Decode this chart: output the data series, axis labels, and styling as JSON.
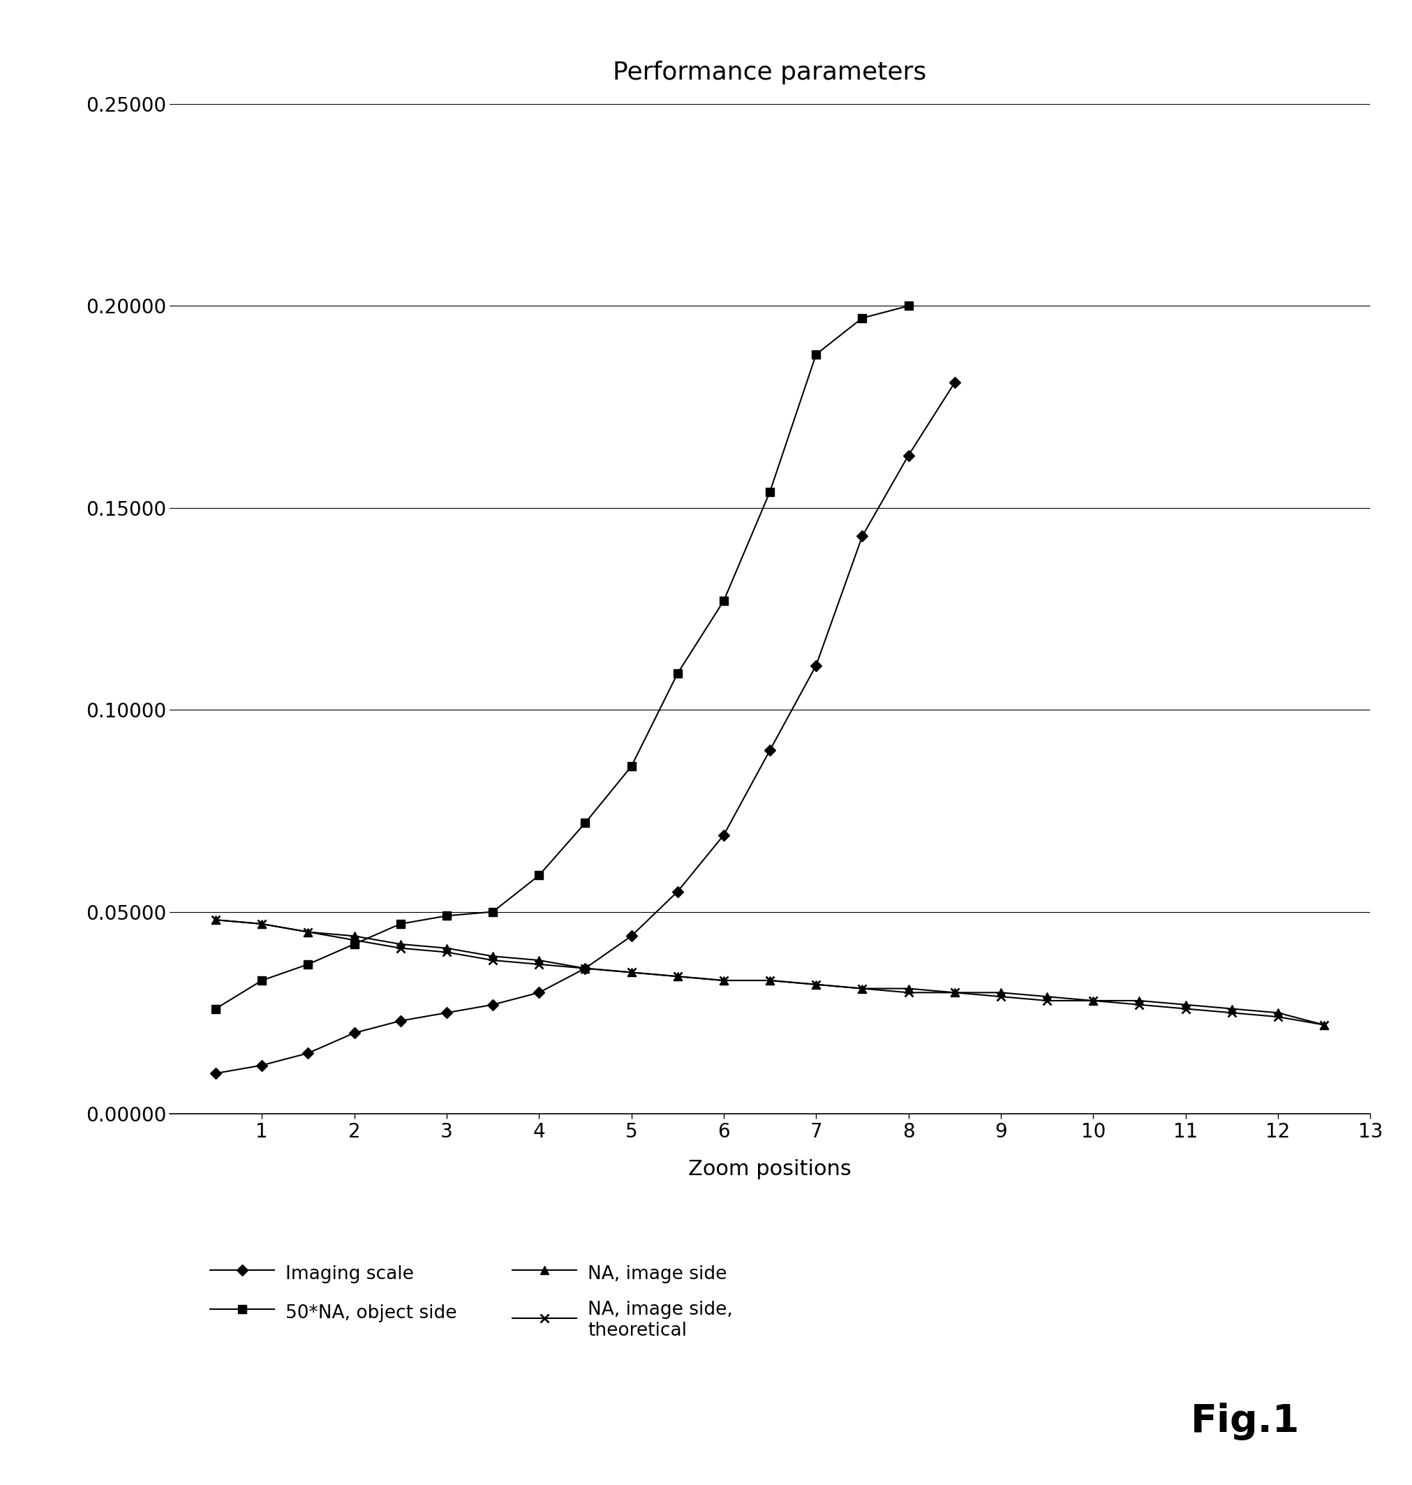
{
  "title": "Performance parameters",
  "xlabel": "Zoom positions",
  "x_half": [
    0.5,
    1.0,
    1.5,
    2.0,
    2.5,
    3.0,
    3.5,
    4.0,
    4.5,
    5.0,
    5.5,
    6.0,
    6.5,
    7.0,
    7.5,
    8.0,
    8.5,
    9.0,
    9.5,
    10.0,
    10.5,
    11.0,
    11.5,
    12.0,
    12.5
  ],
  "imaging_scale_y": [
    0.01,
    0.012,
    0.015,
    0.02,
    0.023,
    0.025,
    0.027,
    0.03,
    0.036,
    0.044,
    0.055,
    0.069,
    0.09,
    0.111,
    0.143,
    0.163,
    0.181,
    null,
    null,
    null,
    null,
    null,
    null,
    null,
    null
  ],
  "na_obj_50x_y": [
    0.026,
    0.033,
    0.037,
    0.042,
    0.047,
    0.049,
    0.05,
    0.059,
    0.072,
    0.086,
    0.109,
    0.127,
    0.154,
    0.188,
    0.197,
    0.2,
    null,
    null,
    null,
    null,
    null,
    null,
    null,
    null,
    null
  ],
  "na_image_side_y": [
    0.048,
    0.047,
    0.045,
    0.044,
    0.042,
    0.041,
    0.039,
    0.038,
    0.036,
    0.035,
    0.034,
    0.033,
    0.033,
    0.032,
    0.031,
    0.031,
    0.03,
    0.03,
    0.029,
    0.028,
    0.028,
    0.027,
    0.026,
    0.025,
    0.022
  ],
  "na_image_theoretical_y": [
    0.048,
    0.047,
    0.045,
    0.043,
    0.041,
    0.04,
    0.038,
    0.037,
    0.036,
    0.035,
    0.034,
    0.033,
    0.033,
    0.032,
    0.031,
    0.03,
    0.03,
    0.029,
    0.028,
    0.028,
    0.027,
    0.026,
    0.025,
    0.024,
    0.022
  ],
  "ylim": [
    0.0,
    0.25
  ],
  "xlim": [
    0.0,
    13.0
  ],
  "yticks": [
    0.0,
    0.05,
    0.1,
    0.15,
    0.2,
    0.25
  ],
  "xticks": [
    1,
    2,
    3,
    4,
    5,
    6,
    7,
    8,
    9,
    10,
    11,
    12,
    13
  ],
  "bg_color": "#ffffff",
  "fig1_text": "Fig.1",
  "title_fontsize": 26,
  "label_fontsize": 22,
  "tick_fontsize": 20,
  "legend_fontsize": 19
}
